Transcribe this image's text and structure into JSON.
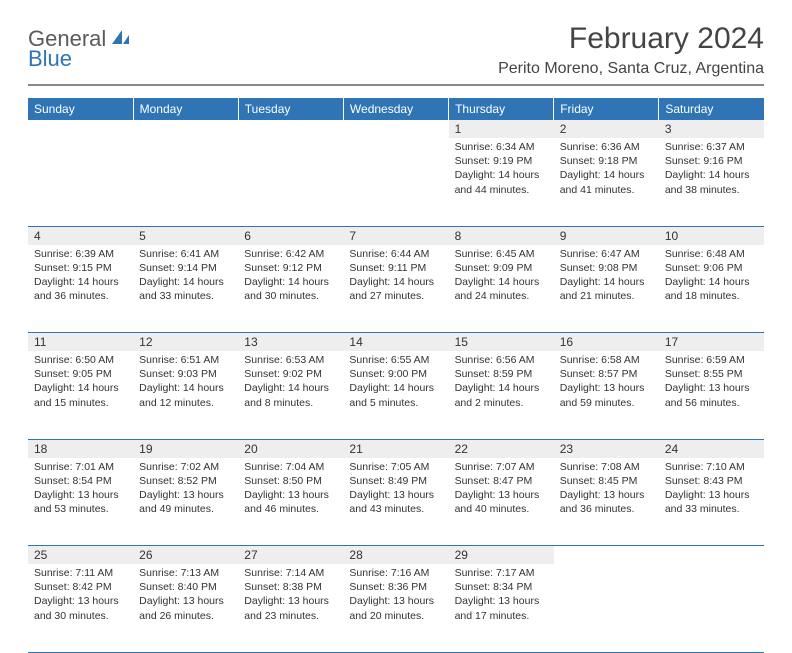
{
  "logo": {
    "general": "General",
    "blue": "Blue"
  },
  "title": "February 2024",
  "location": "Perito Moreno, Santa Cruz, Argentina",
  "colors": {
    "header_bg": "#2f75b5",
    "header_text": "#ffffff",
    "daynum_bg": "#eeeeee",
    "border": "#2f75b5",
    "logo_gray": "#5a5a5a",
    "logo_blue": "#2f75b5"
  },
  "weekdays": [
    "Sunday",
    "Monday",
    "Tuesday",
    "Wednesday",
    "Thursday",
    "Friday",
    "Saturday"
  ],
  "weeks": [
    [
      null,
      null,
      null,
      null,
      {
        "n": "1",
        "sr": "Sunrise: 6:34 AM",
        "ss": "Sunset: 9:19 PM",
        "d1": "Daylight: 14 hours",
        "d2": "and 44 minutes."
      },
      {
        "n": "2",
        "sr": "Sunrise: 6:36 AM",
        "ss": "Sunset: 9:18 PM",
        "d1": "Daylight: 14 hours",
        "d2": "and 41 minutes."
      },
      {
        "n": "3",
        "sr": "Sunrise: 6:37 AM",
        "ss": "Sunset: 9:16 PM",
        "d1": "Daylight: 14 hours",
        "d2": "and 38 minutes."
      }
    ],
    [
      {
        "n": "4",
        "sr": "Sunrise: 6:39 AM",
        "ss": "Sunset: 9:15 PM",
        "d1": "Daylight: 14 hours",
        "d2": "and 36 minutes."
      },
      {
        "n": "5",
        "sr": "Sunrise: 6:41 AM",
        "ss": "Sunset: 9:14 PM",
        "d1": "Daylight: 14 hours",
        "d2": "and 33 minutes."
      },
      {
        "n": "6",
        "sr": "Sunrise: 6:42 AM",
        "ss": "Sunset: 9:12 PM",
        "d1": "Daylight: 14 hours",
        "d2": "and 30 minutes."
      },
      {
        "n": "7",
        "sr": "Sunrise: 6:44 AM",
        "ss": "Sunset: 9:11 PM",
        "d1": "Daylight: 14 hours",
        "d2": "and 27 minutes."
      },
      {
        "n": "8",
        "sr": "Sunrise: 6:45 AM",
        "ss": "Sunset: 9:09 PM",
        "d1": "Daylight: 14 hours",
        "d2": "and 24 minutes."
      },
      {
        "n": "9",
        "sr": "Sunrise: 6:47 AM",
        "ss": "Sunset: 9:08 PM",
        "d1": "Daylight: 14 hours",
        "d2": "and 21 minutes."
      },
      {
        "n": "10",
        "sr": "Sunrise: 6:48 AM",
        "ss": "Sunset: 9:06 PM",
        "d1": "Daylight: 14 hours",
        "d2": "and 18 minutes."
      }
    ],
    [
      {
        "n": "11",
        "sr": "Sunrise: 6:50 AM",
        "ss": "Sunset: 9:05 PM",
        "d1": "Daylight: 14 hours",
        "d2": "and 15 minutes."
      },
      {
        "n": "12",
        "sr": "Sunrise: 6:51 AM",
        "ss": "Sunset: 9:03 PM",
        "d1": "Daylight: 14 hours",
        "d2": "and 12 minutes."
      },
      {
        "n": "13",
        "sr": "Sunrise: 6:53 AM",
        "ss": "Sunset: 9:02 PM",
        "d1": "Daylight: 14 hours",
        "d2": "and 8 minutes."
      },
      {
        "n": "14",
        "sr": "Sunrise: 6:55 AM",
        "ss": "Sunset: 9:00 PM",
        "d1": "Daylight: 14 hours",
        "d2": "and 5 minutes."
      },
      {
        "n": "15",
        "sr": "Sunrise: 6:56 AM",
        "ss": "Sunset: 8:59 PM",
        "d1": "Daylight: 14 hours",
        "d2": "and 2 minutes."
      },
      {
        "n": "16",
        "sr": "Sunrise: 6:58 AM",
        "ss": "Sunset: 8:57 PM",
        "d1": "Daylight: 13 hours",
        "d2": "and 59 minutes."
      },
      {
        "n": "17",
        "sr": "Sunrise: 6:59 AM",
        "ss": "Sunset: 8:55 PM",
        "d1": "Daylight: 13 hours",
        "d2": "and 56 minutes."
      }
    ],
    [
      {
        "n": "18",
        "sr": "Sunrise: 7:01 AM",
        "ss": "Sunset: 8:54 PM",
        "d1": "Daylight: 13 hours",
        "d2": "and 53 minutes."
      },
      {
        "n": "19",
        "sr": "Sunrise: 7:02 AM",
        "ss": "Sunset: 8:52 PM",
        "d1": "Daylight: 13 hours",
        "d2": "and 49 minutes."
      },
      {
        "n": "20",
        "sr": "Sunrise: 7:04 AM",
        "ss": "Sunset: 8:50 PM",
        "d1": "Daylight: 13 hours",
        "d2": "and 46 minutes."
      },
      {
        "n": "21",
        "sr": "Sunrise: 7:05 AM",
        "ss": "Sunset: 8:49 PM",
        "d1": "Daylight: 13 hours",
        "d2": "and 43 minutes."
      },
      {
        "n": "22",
        "sr": "Sunrise: 7:07 AM",
        "ss": "Sunset: 8:47 PM",
        "d1": "Daylight: 13 hours",
        "d2": "and 40 minutes."
      },
      {
        "n": "23",
        "sr": "Sunrise: 7:08 AM",
        "ss": "Sunset: 8:45 PM",
        "d1": "Daylight: 13 hours",
        "d2": "and 36 minutes."
      },
      {
        "n": "24",
        "sr": "Sunrise: 7:10 AM",
        "ss": "Sunset: 8:43 PM",
        "d1": "Daylight: 13 hours",
        "d2": "and 33 minutes."
      }
    ],
    [
      {
        "n": "25",
        "sr": "Sunrise: 7:11 AM",
        "ss": "Sunset: 8:42 PM",
        "d1": "Daylight: 13 hours",
        "d2": "and 30 minutes."
      },
      {
        "n": "26",
        "sr": "Sunrise: 7:13 AM",
        "ss": "Sunset: 8:40 PM",
        "d1": "Daylight: 13 hours",
        "d2": "and 26 minutes."
      },
      {
        "n": "27",
        "sr": "Sunrise: 7:14 AM",
        "ss": "Sunset: 8:38 PM",
        "d1": "Daylight: 13 hours",
        "d2": "and 23 minutes."
      },
      {
        "n": "28",
        "sr": "Sunrise: 7:16 AM",
        "ss": "Sunset: 8:36 PM",
        "d1": "Daylight: 13 hours",
        "d2": "and 20 minutes."
      },
      {
        "n": "29",
        "sr": "Sunrise: 7:17 AM",
        "ss": "Sunset: 8:34 PM",
        "d1": "Daylight: 13 hours",
        "d2": "and 17 minutes."
      },
      null,
      null
    ]
  ]
}
